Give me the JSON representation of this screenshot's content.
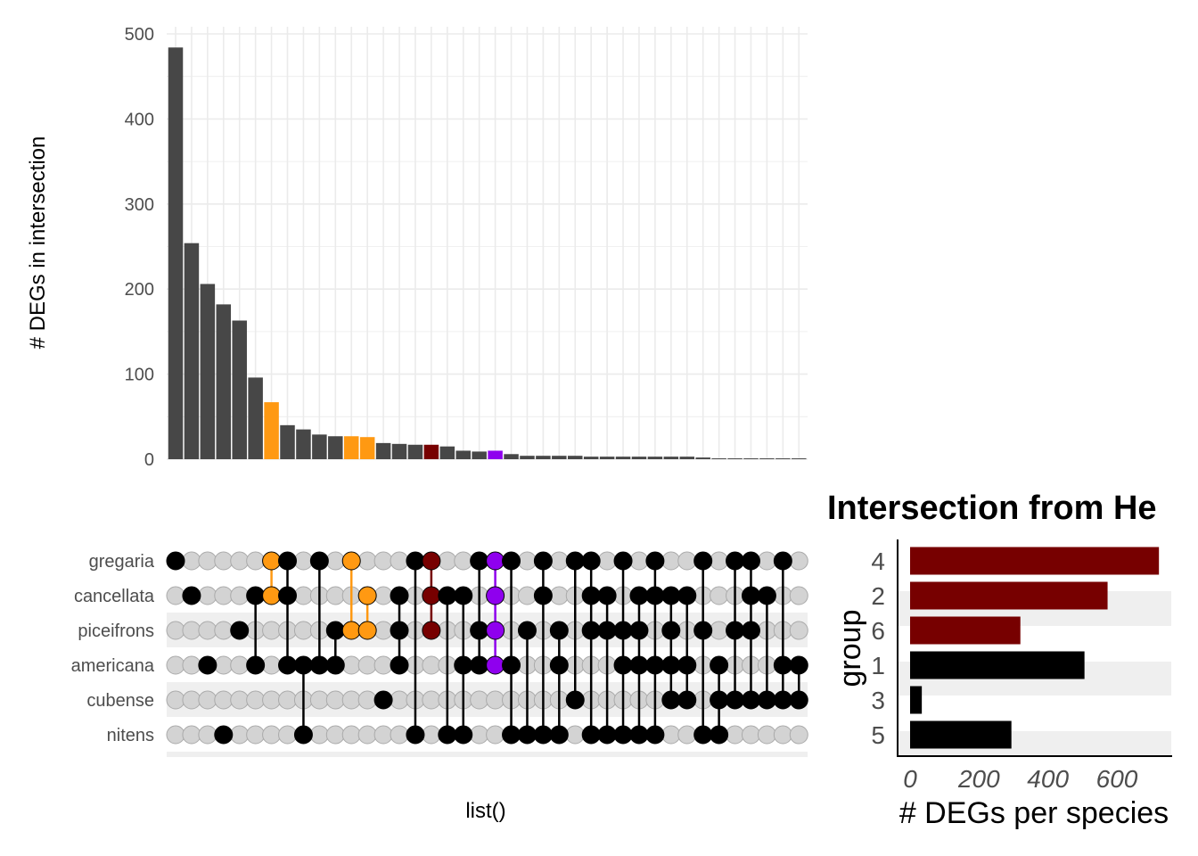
{
  "chart_data": [
    {
      "type": "bar",
      "subtype": "upset-intersection-sizes",
      "ylabel": "# DEGs in intersection",
      "xlabel": "list()",
      "ylim": [
        0,
        500
      ],
      "yticks": [
        "0",
        "100",
        "200",
        "300",
        "400",
        "500"
      ],
      "grid": true,
      "sets": [
        "gregaria",
        "cancellata",
        "piceifrons",
        "americana",
        "cubense",
        "nitens"
      ],
      "values": [
        484,
        254,
        206,
        182,
        163,
        96,
        67,
        40,
        35,
        29,
        27,
        27,
        26,
        19,
        18,
        17,
        17,
        15,
        10,
        9,
        10,
        6,
        4,
        4,
        4,
        4,
        3,
        3,
        3,
        3,
        3,
        3,
        3,
        2,
        1,
        1,
        1,
        1,
        1,
        1
      ],
      "intersections": [
        [
          "gregaria"
        ],
        [
          "cancellata"
        ],
        [
          "americana"
        ],
        [
          "nitens"
        ],
        [
          "piceifrons"
        ],
        [
          "cancellata",
          "americana"
        ],
        [
          "gregaria",
          "cancellata"
        ],
        [
          "gregaria",
          "cancellata",
          "americana"
        ],
        [
          "americana",
          "nitens"
        ],
        [
          "gregaria",
          "americana"
        ],
        [
          "piceifrons",
          "americana"
        ],
        [
          "gregaria",
          "piceifrons"
        ],
        [
          "cancellata",
          "piceifrons"
        ],
        [
          "cubense"
        ],
        [
          "cancellata",
          "piceifrons",
          "americana"
        ],
        [
          "gregaria",
          "nitens"
        ],
        [
          "gregaria",
          "cancellata",
          "piceifrons"
        ],
        [
          "cancellata",
          "nitens"
        ],
        [
          "cancellata",
          "americana",
          "nitens"
        ],
        [
          "gregaria",
          "piceifrons",
          "americana"
        ],
        [
          "gregaria",
          "cancellata",
          "piceifrons",
          "americana"
        ],
        [
          "gregaria",
          "americana",
          "nitens"
        ],
        [
          "piceifrons",
          "nitens"
        ],
        [
          "gregaria",
          "cancellata",
          "nitens"
        ],
        [
          "piceifrons",
          "americana",
          "nitens"
        ],
        [
          "gregaria",
          "cubense"
        ],
        [
          "gregaria",
          "cancellata",
          "piceifrons",
          "nitens"
        ],
        [
          "cancellata",
          "piceifrons",
          "nitens"
        ],
        [
          "gregaria",
          "piceifrons",
          "americana",
          "nitens"
        ],
        [
          "cancellata",
          "piceifrons",
          "americana",
          "nitens"
        ],
        [
          "gregaria",
          "cancellata",
          "americana",
          "nitens"
        ],
        [
          "cancellata",
          "piceifrons",
          "americana",
          "cubense"
        ],
        [
          "cancellata",
          "americana",
          "cubense"
        ],
        [
          "gregaria",
          "piceifrons",
          "nitens"
        ],
        [
          "americana",
          "cubense",
          "nitens"
        ],
        [
          "gregaria",
          "piceifrons",
          "cubense"
        ],
        [
          "gregaria",
          "cancellata",
          "piceifrons",
          "cubense"
        ],
        [
          "cancellata",
          "cubense"
        ],
        [
          "gregaria",
          "americana",
          "cubense"
        ],
        [
          "americana",
          "cubense"
        ]
      ],
      "highlight_colors": {
        "6": "#ff9912",
        "11": "#ff9912",
        "12": "#ff9912",
        "16": "#770000",
        "20": "#8f00ee"
      },
      "default_color": "#474747"
    },
    {
      "type": "bar",
      "orientation": "horizontal",
      "title": "Intersection from He",
      "xlabel": "# DEGs per species",
      "ylabel": "group",
      "xlim": [
        0,
        750
      ],
      "xticks": [
        "0",
        "200",
        "400",
        "600"
      ],
      "categories": [
        "4",
        "2",
        "6",
        "1",
        "3",
        "5"
      ],
      "values": [
        722,
        573,
        320,
        506,
        34,
        294
      ],
      "colors": [
        "#770000",
        "#770000",
        "#770000",
        "#000000",
        "#000000",
        "#000000"
      ]
    }
  ]
}
